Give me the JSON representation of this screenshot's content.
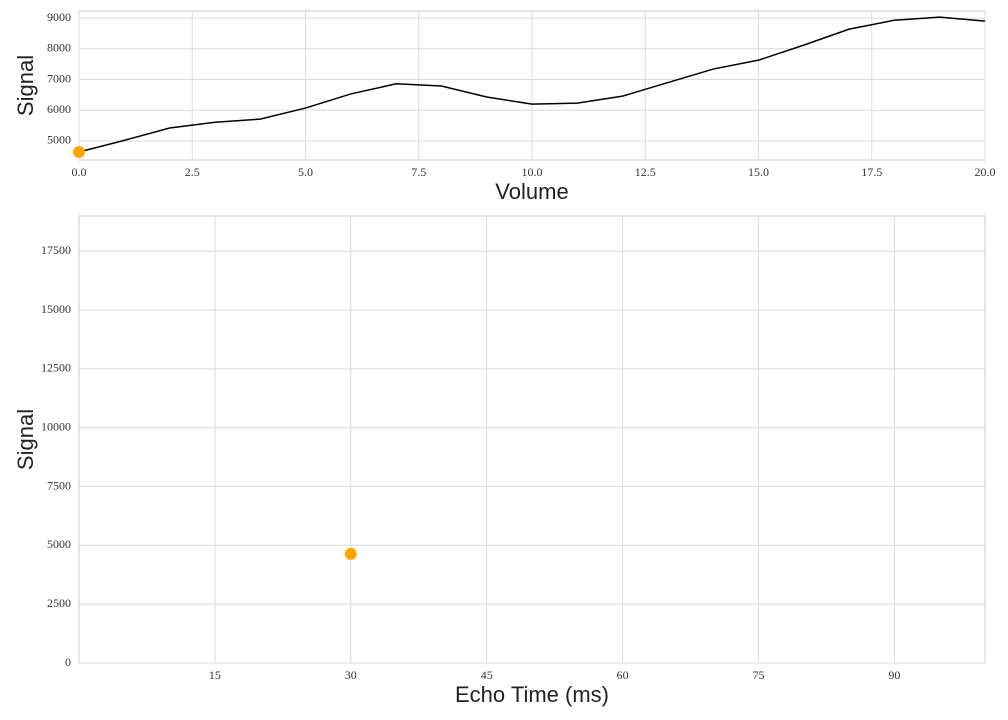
{
  "chart_data": [
    {
      "type": "line",
      "xlabel": "Volume",
      "ylabel": "Signal",
      "xlim": [
        0,
        20
      ],
      "ylim": [
        4380,
        9230
      ],
      "xticks": [
        {
          "value": 0,
          "label": "0.0"
        },
        2.5,
        {
          "value": 5,
          "label": "5.0"
        },
        7.5,
        {
          "value": 10,
          "label": "10.0"
        },
        12.5,
        {
          "value": 15,
          "label": "15.0"
        },
        17.5,
        {
          "value": 20,
          "label": "20.0"
        }
      ],
      "yticks": [
        5000,
        6000,
        7000,
        8000,
        9000
      ],
      "grid": true,
      "series": [
        {
          "style": "line",
          "color": "#000000",
          "x": [
            0,
            1,
            2,
            3,
            4,
            5,
            6,
            7,
            8,
            9,
            10,
            11,
            12,
            13,
            14,
            15,
            16,
            17,
            18,
            19,
            20
          ],
          "values": [
            4640,
            5020,
            5420,
            5610,
            5710,
            6070,
            6530,
            6860,
            6790,
            6430,
            6200,
            6230,
            6460,
            6900,
            7340,
            7630,
            8120,
            8640,
            8930,
            9030,
            8900
          ]
        },
        {
          "style": "marker",
          "color": "#ffa500",
          "x": [
            0
          ],
          "values": [
            4640
          ]
        }
      ]
    },
    {
      "type": "scatter",
      "xlabel": "Echo Time (ms)",
      "ylabel": "Signal",
      "xlim": [
        0,
        100
      ],
      "ylim": [
        0,
        19000
      ],
      "xticks": [
        15,
        30,
        45,
        60,
        75,
        90
      ],
      "yticks": [
        0,
        2500,
        5000,
        7500,
        10000,
        12500,
        15000,
        17500
      ],
      "grid": true,
      "series": [
        {
          "style": "marker",
          "color": "#ffa500",
          "x": [
            30
          ],
          "values": [
            4640
          ]
        }
      ]
    }
  ]
}
